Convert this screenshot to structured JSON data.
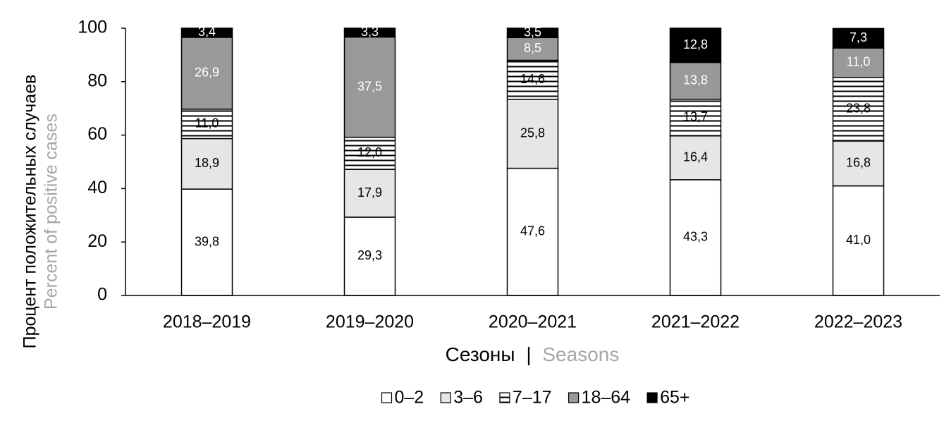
{
  "chart_data": {
    "type": "stacked_bar",
    "y_label": {
      "ru": "Процент положительных случаев",
      "en": "Percent of positive cases"
    },
    "x_label": {
      "ru": "Сезоны",
      "separator": "|",
      "en": "Seasons"
    },
    "categories": [
      "2018–2019",
      "2019–2020",
      "2020–2021",
      "2021–2022",
      "2022–2023"
    ],
    "ylim": [
      0,
      100
    ],
    "yticks": [
      0,
      20,
      40,
      60,
      80,
      100
    ],
    "legend": "bottom",
    "series": [
      {
        "name": "0–2",
        "color": "#ffffff",
        "values": [
          39.8,
          29.3,
          47.6,
          43.3,
          41.0
        ],
        "value_labels": [
          "39,8",
          "29,3",
          "47,6",
          "43,3",
          "41,0"
        ]
      },
      {
        "name": "3–6",
        "color": "#e6e6e6",
        "values": [
          18.9,
          17.9,
          25.8,
          16.4,
          16.8
        ],
        "value_labels": [
          "18,9",
          "17,9",
          "25,8",
          "16,4",
          "16,8"
        ]
      },
      {
        "name": "7–17",
        "color": "#ffffff",
        "hatch": "horizontal",
        "values": [
          11.0,
          12.0,
          14.6,
          13.7,
          23.8
        ],
        "value_labels": [
          "11,0",
          "12,0",
          "14,6",
          "13,7",
          "23,8"
        ]
      },
      {
        "name": "18–64",
        "color": "#999999",
        "values": [
          26.9,
          37.5,
          8.5,
          13.8,
          11.0
        ],
        "value_labels": [
          "26,9",
          "37,5",
          "8,5",
          "13,8",
          "11,0"
        ]
      },
      {
        "name": "65+",
        "color": "#000000",
        "values": [
          3.4,
          3.3,
          3.5,
          12.8,
          7.3
        ],
        "value_labels": [
          "3,4",
          "3,3",
          "3,5",
          "12,8",
          "7,3"
        ]
      }
    ]
  }
}
